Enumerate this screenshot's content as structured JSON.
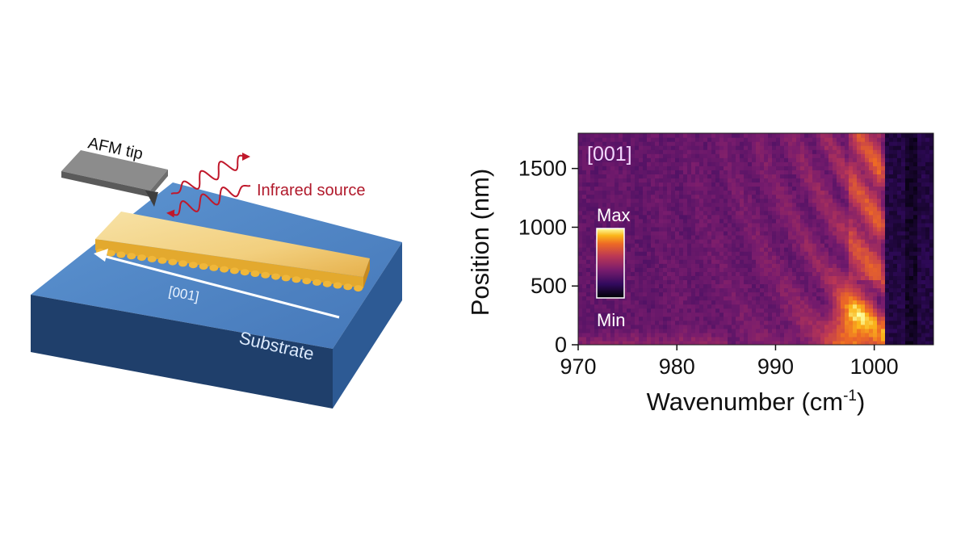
{
  "schematic": {
    "tip_label": "AFM tip",
    "source_label": "Infrared source",
    "direction_label": "[001]",
    "substrate_label": "Substrate",
    "colors": {
      "substrate_top": "#4e86c6",
      "substrate_front": "#1f3f6b",
      "substrate_side": "#2d5a94",
      "crystal_top": "#f4d58c",
      "crystal_edge": "#e3a92e",
      "tip": "#8a8a8a",
      "wave": "#c0182b"
    }
  },
  "chart_data": {
    "type": "heatmap",
    "panel_label": "[001]",
    "xlabel": "Wavenumber (cm-1)",
    "xlabel_main": "Wavenumber (cm",
    "xlabel_sup": "-1",
    "xlabel_end": ")",
    "ylabel": "Position (nm)",
    "xlim": [
      970,
      1006
    ],
    "ylim": [
      0,
      1800
    ],
    "xticks": [
      970,
      980,
      990,
      1000
    ],
    "yticks": [
      0,
      500,
      1000,
      1500
    ],
    "colorbar": {
      "max_label": "Max",
      "min_label": "Min",
      "colormap": "inferno"
    },
    "features": [
      {
        "name": "phonon resonance edge",
        "x": 1000.5
      },
      {
        "name": "dark band",
        "x_range": [
          1001,
          1006
        ]
      },
      {
        "name": "brightest region",
        "x_range": [
          995,
          1000
        ],
        "y_range": [
          50,
          650
        ]
      }
    ]
  }
}
